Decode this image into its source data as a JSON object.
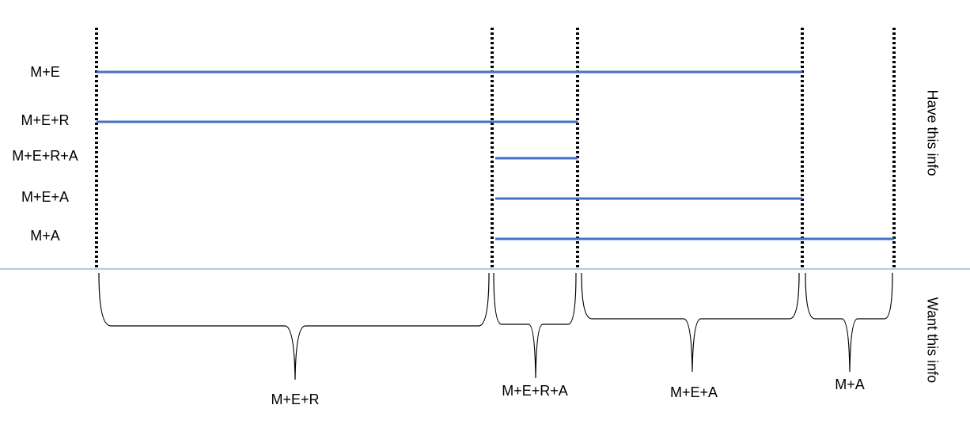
{
  "rows": [
    {
      "label": "M+E"
    },
    {
      "label": "M+E+R"
    },
    {
      "label": "M+E+R+A"
    },
    {
      "label": "M+E+A"
    },
    {
      "label": "M+A"
    }
  ],
  "segments": [
    {
      "label": "M+E+R"
    },
    {
      "label": "M+E+R+A"
    },
    {
      "label": "M+E+A"
    },
    {
      "label": "M+A"
    }
  ],
  "side_labels": {
    "have": "Have this info",
    "want": "Want this info"
  }
}
